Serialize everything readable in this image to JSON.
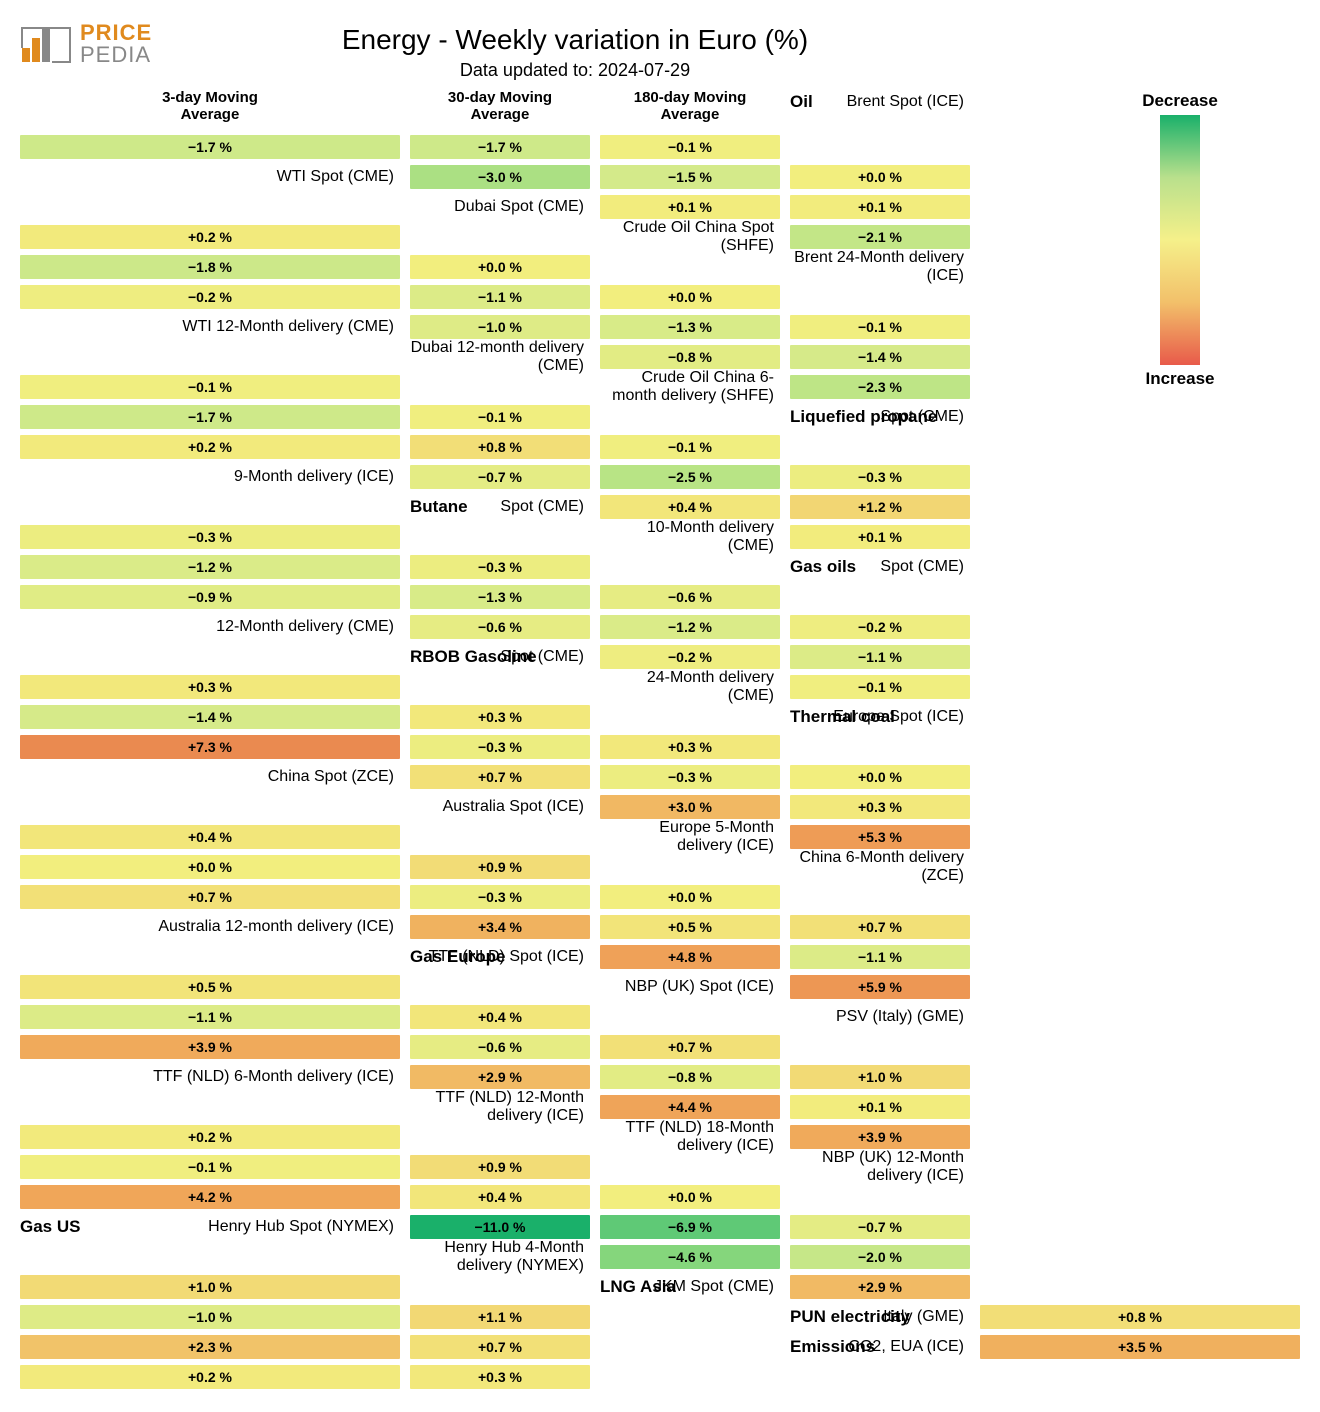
{
  "meta": {
    "title": "Energy - Weekly variation in Euro (%)",
    "subtitle": "Data updated to: 2024-07-29",
    "logo_brand1": "PRICE",
    "logo_brand2": "PEDIA"
  },
  "columns": [
    "3-day Moving\nAverage",
    "30-day Moving\nAverage",
    "180-day Moving\nAverage"
  ],
  "legend": {
    "top": "Decrease",
    "bottom": "Increase"
  },
  "color_scale": {
    "min": -11.0,
    "max": 7.3,
    "stops": [
      {
        "v": -11.0,
        "c": "#1ab06a"
      },
      {
        "v": -4.0,
        "c": "#8fda7e"
      },
      {
        "v": -1.5,
        "c": "#d4ea8a"
      },
      {
        "v": 0.0,
        "c": "#f2ee7e"
      },
      {
        "v": 1.5,
        "c": "#f2d070"
      },
      {
        "v": 4.0,
        "c": "#f0a85a"
      },
      {
        "v": 7.3,
        "c": "#ea8a50"
      }
    ]
  },
  "rows": [
    {
      "section": "Oil",
      "label": "Brent Spot (ICE)",
      "v": [
        -1.7,
        -1.7,
        -0.1
      ]
    },
    {
      "section": "",
      "label": "WTI Spot (CME)",
      "v": [
        -3.0,
        -1.5,
        0.0
      ]
    },
    {
      "section": "",
      "label": "Dubai Spot (CME)",
      "v": [
        0.1,
        0.1,
        0.2
      ]
    },
    {
      "section": "",
      "label": "Crude Oil China Spot (SHFE)",
      "v": [
        -2.1,
        -1.8,
        0.0
      ]
    },
    {
      "section": "",
      "label": "Brent 24-Month delivery (ICE)",
      "v": [
        -0.2,
        -1.1,
        0.0
      ]
    },
    {
      "section": "",
      "label": "WTI 12-Month delivery (CME)",
      "v": [
        -1.0,
        -1.3,
        -0.1
      ]
    },
    {
      "section": "",
      "label": "Dubai 12-month delivery (CME)",
      "v": [
        -0.8,
        -1.4,
        -0.1
      ]
    },
    {
      "section": "",
      "label": "Crude Oil China 6-month delivery (SHFE)",
      "v": [
        -2.3,
        -1.7,
        -0.1
      ]
    },
    {
      "section": "Liquefied propane",
      "label": "Spot (CME)",
      "v": [
        0.2,
        0.8,
        -0.1
      ]
    },
    {
      "section": "",
      "label": "9-Month delivery (ICE)",
      "v": [
        -0.7,
        -2.5,
        -0.3
      ]
    },
    {
      "section": "Butane",
      "label": "Spot (CME)",
      "v": [
        0.4,
        1.2,
        -0.3
      ]
    },
    {
      "section": "",
      "label": "10-Month delivery (CME)",
      "v": [
        0.1,
        -1.2,
        -0.3
      ]
    },
    {
      "section": "Gas oils",
      "label": "Spot (CME)",
      "v": [
        -0.9,
        -1.3,
        -0.6
      ]
    },
    {
      "section": "",
      "label": "12-Month delivery (CME)",
      "v": [
        -0.6,
        -1.2,
        -0.2
      ]
    },
    {
      "section": "RBOB Gasoline",
      "label": "Spot (CME)",
      "v": [
        -0.2,
        -1.1,
        0.3
      ]
    },
    {
      "section": "",
      "label": "24-Month delivery (CME)",
      "v": [
        -0.1,
        -1.4,
        0.3
      ]
    },
    {
      "section": "Thermal coal",
      "label": "Europe Spot (ICE)",
      "v": [
        7.3,
        -0.3,
        0.3
      ]
    },
    {
      "section": "",
      "label": "China Spot (ZCE)",
      "v": [
        0.7,
        -0.3,
        0.0
      ]
    },
    {
      "section": "",
      "label": "Australia Spot (ICE)",
      "v": [
        3.0,
        0.3,
        0.4
      ]
    },
    {
      "section": "",
      "label": "Europe 5-Month delivery (ICE)",
      "v": [
        5.3,
        0.0,
        0.9
      ]
    },
    {
      "section": "",
      "label": "China 6-Month delivery (ZCE)",
      "v": [
        0.7,
        -0.3,
        0.0
      ]
    },
    {
      "section": "",
      "label": "Australia 12-month delivery (ICE)",
      "v": [
        3.4,
        0.5,
        0.7
      ]
    },
    {
      "section": "Gas Europe",
      "label": "TTF (NLD) Spot (ICE)",
      "v": [
        4.8,
        -1.1,
        0.5
      ]
    },
    {
      "section": "",
      "label": "NBP (UK) Spot (ICE)",
      "v": [
        5.9,
        -1.1,
        0.4
      ]
    },
    {
      "section": "",
      "label": "PSV (Italy) (GME)",
      "v": [
        3.9,
        -0.6,
        0.7
      ]
    },
    {
      "section": "",
      "label": "TTF (NLD) 6-Month delivery (ICE)",
      "v": [
        2.9,
        -0.8,
        1.0
      ]
    },
    {
      "section": "",
      "label": "TTF (NLD) 12-Month delivery (ICE)",
      "v": [
        4.4,
        0.1,
        0.2
      ]
    },
    {
      "section": "",
      "label": "TTF (NLD) 18-Month delivery (ICE)",
      "v": [
        3.9,
        -0.1,
        0.9
      ]
    },
    {
      "section": "",
      "label": "NBP (UK) 12-Month delivery (ICE)",
      "v": [
        4.2,
        0.4,
        0.0
      ]
    },
    {
      "section": "Gas US",
      "label": "Henry Hub Spot (NYMEX)",
      "v": [
        -11.0,
        -6.9,
        -0.7
      ]
    },
    {
      "section": "",
      "label": "Henry Hub 4-Month delivery (NYMEX)",
      "v": [
        -4.6,
        -2.0,
        1.0
      ]
    },
    {
      "section": "LNG Asia",
      "label": "JKM Spot (CME)",
      "v": [
        2.9,
        -1.0,
        1.1
      ]
    },
    {
      "section": "PUN electricity",
      "label": "Italy (GME)",
      "v": [
        0.8,
        2.3,
        0.7
      ]
    },
    {
      "section": "Emissions",
      "label": "CO2, EUA (ICE)",
      "v": [
        3.5,
        0.2,
        0.3
      ]
    }
  ]
}
